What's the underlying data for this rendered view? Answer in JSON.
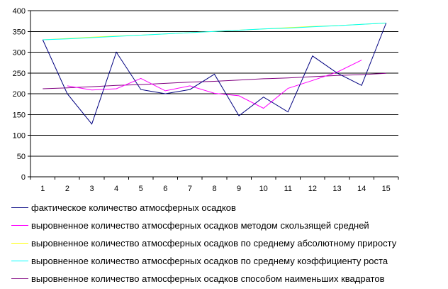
{
  "chart_data": {
    "type": "line",
    "categories": [
      "1",
      "2",
      "3",
      "4",
      "5",
      "6",
      "7",
      "8",
      "9",
      "10",
      "11",
      "12",
      "13",
      "14",
      "15"
    ],
    "ylim": [
      0,
      400
    ],
    "yticks": [
      "0",
      "50",
      "100",
      "150",
      "200",
      "250",
      "300",
      "350",
      "400"
    ],
    "grid": "horizontal",
    "legend_position": "bottom",
    "series": [
      {
        "name": "фактическое количество атмосферных осадков",
        "color": "#000080",
        "values": [
          330,
          200,
          127,
          300,
          210,
          200,
          210,
          247,
          147,
          192,
          156,
          291,
          250,
          220,
          370
        ]
      },
      {
        "name": "выровненное количество атмосферных осадков методом скользящей средней",
        "color": "#FF00FF",
        "values": [
          null,
          219,
          209,
          212,
          237,
          207,
          219,
          201,
          195,
          165,
          213,
          232,
          252,
          281,
          null
        ]
      },
      {
        "name": "выровненное количество атмосферных осадков по среднему абсолютному приросту",
        "color": "#FFFF00",
        "values": [
          330,
          333,
          336,
          339,
          341,
          344,
          347,
          350,
          353,
          356,
          359,
          362,
          364,
          367,
          370
        ]
      },
      {
        "name": "выровненное количество атмосферных осадков по среднему коэффициенту роста",
        "color": "#00FFFF",
        "values": [
          330,
          332,
          335,
          338,
          341,
          344,
          347,
          350,
          353,
          356,
          358,
          361,
          364,
          367,
          370
        ]
      },
      {
        "name": "выровненное количество атмосферных осадков способом наименьших квадратов",
        "color": "#800080",
        "values": [
          212,
          214,
          217,
          220,
          222,
          225,
          228,
          230,
          233,
          236,
          238,
          241,
          244,
          246,
          249
        ]
      }
    ]
  }
}
